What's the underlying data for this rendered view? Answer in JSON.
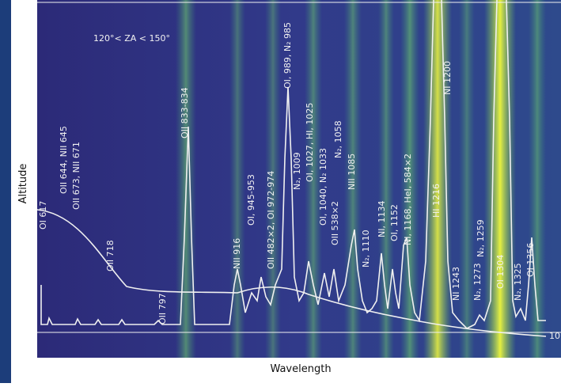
{
  "axes": {
    "x_label": "Wavelength",
    "y_label": "Altitude"
  },
  "condition": "120°< ZA < 150°",
  "annotations": [
    "OI 617",
    "OII 644, NII 645",
    "OII 673, NII 671",
    "OII 718",
    "OII 797",
    "OII 833-834",
    "NII 916",
    "OI, 945-953",
    "OII 482×2, OI 972-974",
    "OI, 989, N₂ 985",
    "N₂, 1009",
    "OI, 1027, HI, 1025",
    "OI, 1040, N₂ 1033",
    "OII 538×2",
    "N₂, 1058",
    "NII 1085",
    "N₂, 1110",
    "NI, 1134",
    "OI, 1152",
    "NI, 1168, HeI, 584×2",
    "HI 1216",
    "NI 1200",
    "NI 1243",
    "N₂, 1273",
    "N₂, 1259",
    "OI 1304",
    "N₂, 1325",
    "OI 1356",
    "10"
  ]
}
